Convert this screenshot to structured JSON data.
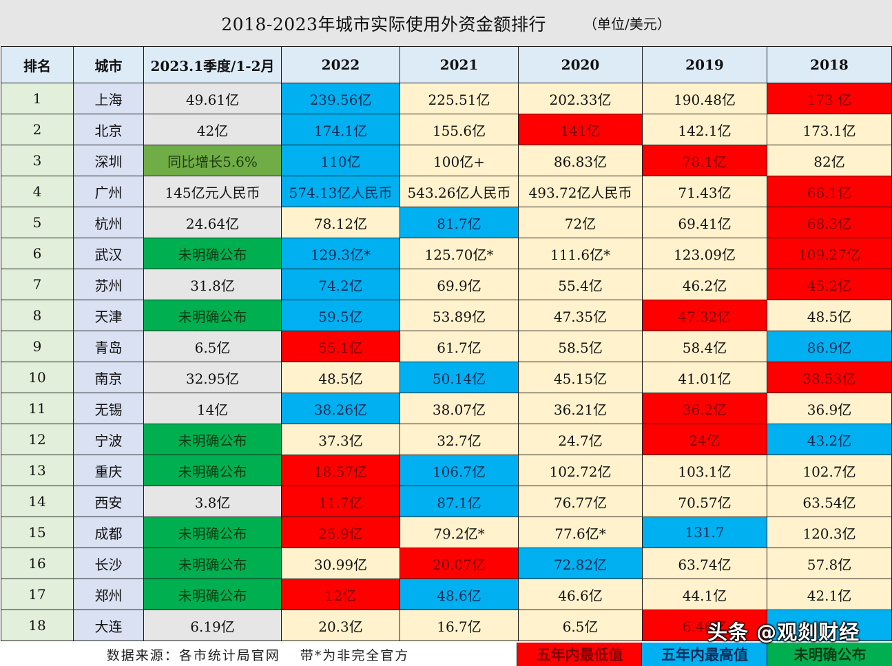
{
  "header": {
    "title": "2018-2023年城市实际使用外资金额排行",
    "unit": "（单位/美元）"
  },
  "table": {
    "columns": [
      "排名",
      "城市",
      "2023.1季度/1-2月",
      "2022",
      "2021",
      "2020",
      "2019",
      "2018"
    ],
    "rows": [
      {
        "rank": "1",
        "city": "上海",
        "values": [
          "49.61亿",
          "239.56亿",
          "225.51亿",
          "202.33亿",
          "190.48亿",
          "173 亿"
        ],
        "styles": [
          "q1",
          "high",
          "default",
          "default",
          "default",
          "low"
        ]
      },
      {
        "rank": "2",
        "city": "北京",
        "values": [
          "42亿",
          "174.1亿",
          "155.6亿",
          "141亿",
          "142.1亿",
          "173.1亿"
        ],
        "styles": [
          "q1",
          "high",
          "default",
          "low",
          "default",
          "default"
        ]
      },
      {
        "rank": "3",
        "city": "深圳",
        "values": [
          "同比增长5.6%",
          "110亿",
          "100亿+",
          "86.83亿",
          "78.1亿",
          "82亿"
        ],
        "styles": [
          "growth",
          "high",
          "default",
          "default",
          "low",
          "default"
        ]
      },
      {
        "rank": "4",
        "city": "广州",
        "values": [
          "145亿元人民币",
          "574.13亿人民币",
          "543.26亿人民币",
          "493.72亿人民币",
          "71.43亿",
          "66.1亿"
        ],
        "styles": [
          "q1",
          "high",
          "default",
          "default",
          "default",
          "low"
        ]
      },
      {
        "rank": "5",
        "city": "杭州",
        "values": [
          "24.64亿",
          "78.12亿",
          "81.7亿",
          "72亿",
          "69.41亿",
          "68.3亿"
        ],
        "styles": [
          "q1",
          "default",
          "high",
          "default",
          "default",
          "low"
        ]
      },
      {
        "rank": "6",
        "city": "武汉",
        "values": [
          "未明确公布",
          "129.3亿*",
          "125.70亿*",
          "111.6亿*",
          "123.09亿",
          "109.27亿"
        ],
        "styles": [
          "na",
          "high",
          "default",
          "default",
          "default",
          "low"
        ]
      },
      {
        "rank": "7",
        "city": "苏州",
        "values": [
          "31.8亿",
          "74.2亿",
          "69.9亿",
          "55.4亿",
          "46.2亿",
          "45.2亿"
        ],
        "styles": [
          "q1",
          "high",
          "default",
          "default",
          "default",
          "low"
        ]
      },
      {
        "rank": "8",
        "city": "天津",
        "values": [
          "未明确公布",
          "59.5亿",
          "53.89亿",
          "47.35亿",
          "47.32亿",
          "48.5亿"
        ],
        "styles": [
          "na",
          "high",
          "default",
          "default",
          "low",
          "default"
        ]
      },
      {
        "rank": "9",
        "city": "青岛",
        "values": [
          "6.5亿",
          "55.1亿",
          "61.7亿",
          "58.5亿",
          "58.4亿",
          "86.9亿"
        ],
        "styles": [
          "q1",
          "low",
          "default",
          "default",
          "default",
          "high"
        ]
      },
      {
        "rank": "10",
        "city": "南京",
        "values": [
          "32.95亿",
          "48.5亿",
          "50.14亿",
          "45.15亿",
          "41.01亿",
          "38.53亿"
        ],
        "styles": [
          "q1",
          "default",
          "high",
          "default",
          "default",
          "low"
        ]
      },
      {
        "rank": "11",
        "city": "无锡",
        "values": [
          "14亿",
          "38.26亿",
          "38.07亿",
          "36.21亿",
          "36.2亿",
          "36.9亿"
        ],
        "styles": [
          "q1",
          "high",
          "default",
          "default",
          "low",
          "default"
        ]
      },
      {
        "rank": "12",
        "city": "宁波",
        "values": [
          "未明确公布",
          "37.3亿",
          "32.7亿",
          "24.7亿",
          "24亿",
          "43.2亿"
        ],
        "styles": [
          "na",
          "default",
          "default",
          "default",
          "low",
          "high"
        ]
      },
      {
        "rank": "13",
        "city": "重庆",
        "values": [
          "未明确公布",
          "18.57亿",
          "106.7亿",
          "102.72亿",
          "103.1亿",
          "102.7亿"
        ],
        "styles": [
          "na",
          "low",
          "high",
          "default",
          "default",
          "default"
        ]
      },
      {
        "rank": "14",
        "city": "西安",
        "values": [
          "3.8亿",
          "11.7亿",
          "87.1亿",
          "76.77亿",
          "70.57亿",
          "63.54亿"
        ],
        "styles": [
          "q1",
          "low",
          "high",
          "default",
          "default",
          "default"
        ]
      },
      {
        "rank": "15",
        "city": "成都",
        "values": [
          "未明确公布",
          "25.9亿",
          "79.2亿*",
          "77.6亿*",
          "131.7",
          "120.3亿"
        ],
        "styles": [
          "na",
          "low",
          "default",
          "default",
          "high",
          "default"
        ]
      },
      {
        "rank": "16",
        "city": "长沙",
        "values": [
          "未明确公布",
          "30.99亿",
          "20.07亿",
          "72.82亿",
          "63.74亿",
          "57.8亿"
        ],
        "styles": [
          "na",
          "default",
          "low",
          "high",
          "default",
          "default"
        ]
      },
      {
        "rank": "17",
        "city": "郑州",
        "values": [
          "未明确公布",
          "12亿",
          "48.6亿",
          "46.6亿",
          "44.1亿",
          "42.1亿"
        ],
        "styles": [
          "na",
          "low",
          "high",
          "default",
          "default",
          "default"
        ]
      },
      {
        "rank": "18",
        "city": "大连",
        "values": [
          "6.19亿",
          "20.3亿",
          "16.7亿",
          "6.5亿",
          "6.46亿",
          ""
        ],
        "styles": [
          "q1",
          "default",
          "default",
          "default",
          "low",
          "high"
        ]
      }
    ]
  },
  "footer": {
    "source": "数据来源：各市统计局官网　 带*为非完全官方",
    "legend": {
      "low": "五年内最低值",
      "high": "五年内最高值",
      "na": "未明确公布"
    }
  },
  "watermark": "头条 @观剡财经",
  "colors": {
    "low": "#ff0000",
    "high": "#00b0f0",
    "na": "#00b050",
    "growth": "#70ad47",
    "default_cell": "#fff2cc",
    "q1_cell": "#e6e6e6",
    "rank_cell": "#e2efda",
    "city_cell": "#d9e1f2",
    "header_cell": "#ddebf7"
  }
}
